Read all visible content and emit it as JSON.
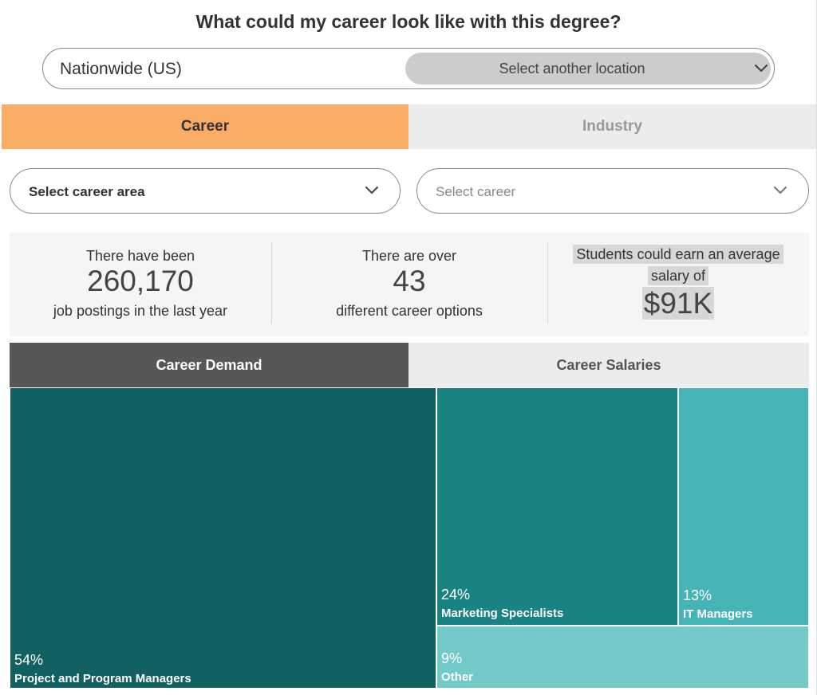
{
  "title": "What could my career look like with this degree?",
  "location": {
    "current": "Nationwide (US)",
    "select_label": "Select another location",
    "select_icon": "chevron-down-icon"
  },
  "tabs": [
    {
      "label": "Career",
      "active": true
    },
    {
      "label": "Industry",
      "active": false
    }
  ],
  "filters": {
    "career_area": {
      "value": "Select career area",
      "icon": "chevron-down-icon"
    },
    "career": {
      "placeholder": "Select career",
      "icon": "chevron-down-icon"
    }
  },
  "stats": [
    {
      "pre": "There have been",
      "value": "260,170",
      "post": "job postings in the last year"
    },
    {
      "pre": "There are over",
      "value": "43",
      "post": "different career options"
    },
    {
      "line1": "Students could earn an average",
      "line2": "salary of",
      "value": "$91K"
    }
  ],
  "subtabs": [
    {
      "label": "Career Demand",
      "active": true
    },
    {
      "label": "Career Salaries",
      "active": false
    }
  ],
  "colors": {
    "accent_orange": "#f9ad66",
    "dark_tab": "#575757",
    "treemap": [
      "#116062",
      "#198384",
      "#46b4b6",
      "#74c9c9"
    ]
  },
  "chart_data": {
    "type": "treemap",
    "items": [
      {
        "pct": "54%",
        "name": "Project and Program Managers",
        "value": 54
      },
      {
        "pct": "24%",
        "name": "Marketing Specialists",
        "value": 24
      },
      {
        "pct": "13%",
        "name": "IT Managers",
        "value": 13
      },
      {
        "pct": "9%",
        "name": "Other",
        "value": 9
      }
    ]
  }
}
